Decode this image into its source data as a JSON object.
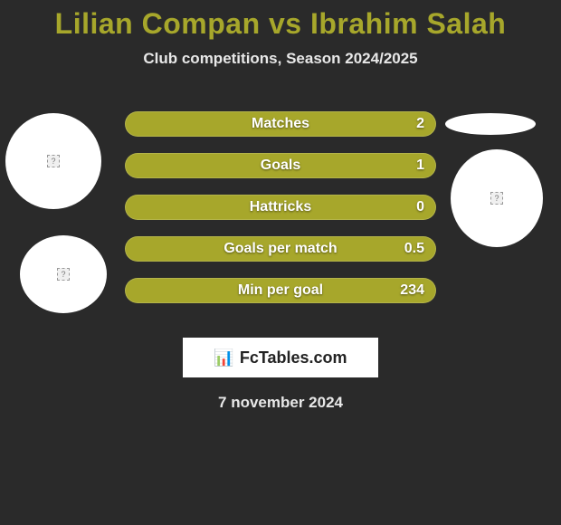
{
  "title": {
    "text": "Lilian Compan vs Ibrahim Salah",
    "color": "#a7a72b",
    "fontsize": 32
  },
  "subtitle": "Club competitions, Season 2024/2025",
  "bars": [
    {
      "label": "Matches",
      "value": "2",
      "fill": "#a7a72b"
    },
    {
      "label": "Goals",
      "value": "1",
      "fill": "#a7a72b"
    },
    {
      "label": "Hattricks",
      "value": "0",
      "fill": "#a7a72b"
    },
    {
      "label": "Goals per match",
      "value": "0.5",
      "fill": "#a7a72b"
    },
    {
      "label": "Min per goal",
      "value": "234",
      "fill": "#a7a72b"
    }
  ],
  "bar_style": {
    "height": 28,
    "radius": 14,
    "gap": 18,
    "label_color": "#ffffff",
    "value_color": "#ffffff",
    "border_color": "rgba(255,255,255,0.15)"
  },
  "avatars": {
    "left1_bg": "#ffffff",
    "left2_bg": "#ffffff",
    "right1_bg": "#ffffff",
    "oval_bg": "#ffffff"
  },
  "brand": {
    "logo_glyph": "📊",
    "text": "FcTables.com",
    "box_bg": "#ffffff",
    "text_color": "#222222"
  },
  "date": "7 november 2024",
  "background_color": "#2a2a2a"
}
